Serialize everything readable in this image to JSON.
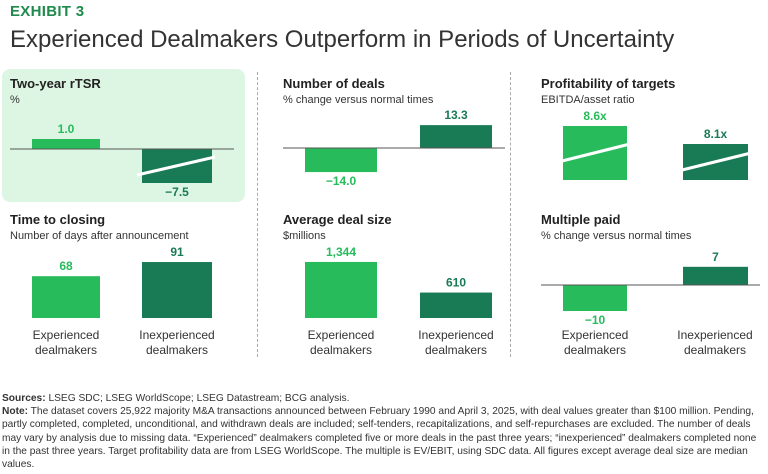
{
  "exhibit": "EXHIBIT 3",
  "title": "Experienced Dealmakers Outperform in Periods of Uncertainty",
  "colors": {
    "experienced": "#27bb5c",
    "inexperienced": "#197a56",
    "highlight": "#ddf6e3"
  },
  "x_labels": [
    [
      "Experienced",
      "dealmakers"
    ],
    [
      "Inexperienced",
      "dealmakers"
    ]
  ],
  "chart_data": [
    {
      "type": "bar",
      "title": "Two-year rTSR",
      "subtitle": "%",
      "categories": [
        "Experienced dealmakers",
        "Inexperienced dealmakers"
      ],
      "values": [
        1.0,
        -7.5
      ],
      "labels": [
        "1.0",
        "−7.5"
      ],
      "axis_break": "inexperienced bar"
    },
    {
      "type": "bar",
      "title": "Number of deals",
      "subtitle": "% change versus normal times",
      "categories": [
        "Experienced dealmakers",
        "Inexperienced dealmakers"
      ],
      "values": [
        -14.0,
        13.3
      ],
      "labels": [
        "−14.0",
        "13.3"
      ]
    },
    {
      "type": "bar",
      "title": "Profitability of targets",
      "subtitle": "EBITDA/asset ratio",
      "categories": [
        "Experienced dealmakers",
        "Inexperienced dealmakers"
      ],
      "values": [
        8.6,
        8.1
      ],
      "labels": [
        "8.6x",
        "8.1x"
      ],
      "axis_break": "both bars"
    },
    {
      "type": "bar",
      "title": "Time to closing",
      "subtitle": "Number of days after announcement",
      "categories": [
        "Experienced dealmakers",
        "Inexperienced dealmakers"
      ],
      "values": [
        68,
        91
      ],
      "labels": [
        "68",
        "91"
      ]
    },
    {
      "type": "bar",
      "title": "Average deal size",
      "subtitle": "$millions",
      "categories": [
        "Experienced dealmakers",
        "Inexperienced dealmakers"
      ],
      "values": [
        1344,
        610
      ],
      "labels": [
        "1,344",
        "610"
      ]
    },
    {
      "type": "bar",
      "title": "Multiple paid",
      "subtitle": "% change versus normal times",
      "categories": [
        "Experienced dealmakers",
        "Inexperienced dealmakers"
      ],
      "values": [
        -10,
        7
      ],
      "labels": [
        "−10",
        "7"
      ]
    }
  ],
  "footer": {
    "sources_label": "Sources:",
    "sources": " LSEG SDC; LSEG WorldScope; LSEG Datastream; BCG analysis.",
    "note_label": "Note:",
    "note": " The dataset covers 25,922 majority M&A transactions announced between February 1990 and April 3, 2025, with deal values greater than $100 million. Pending, partly completed, completed, unconditional, and withdrawn deals are included; self-tenders, recapitalizations, and self-repurchases are excluded. The number of deals may vary by analysis due to missing data. “Experienced” dealmakers completed five or more deals in the past three years; “inexperienced” dealmakers completed none in the past three years. Target profitability data are from LSEG WorldScope. The multiple is EV/EBIT, using SDC data. All figures except average deal size are median values."
  }
}
